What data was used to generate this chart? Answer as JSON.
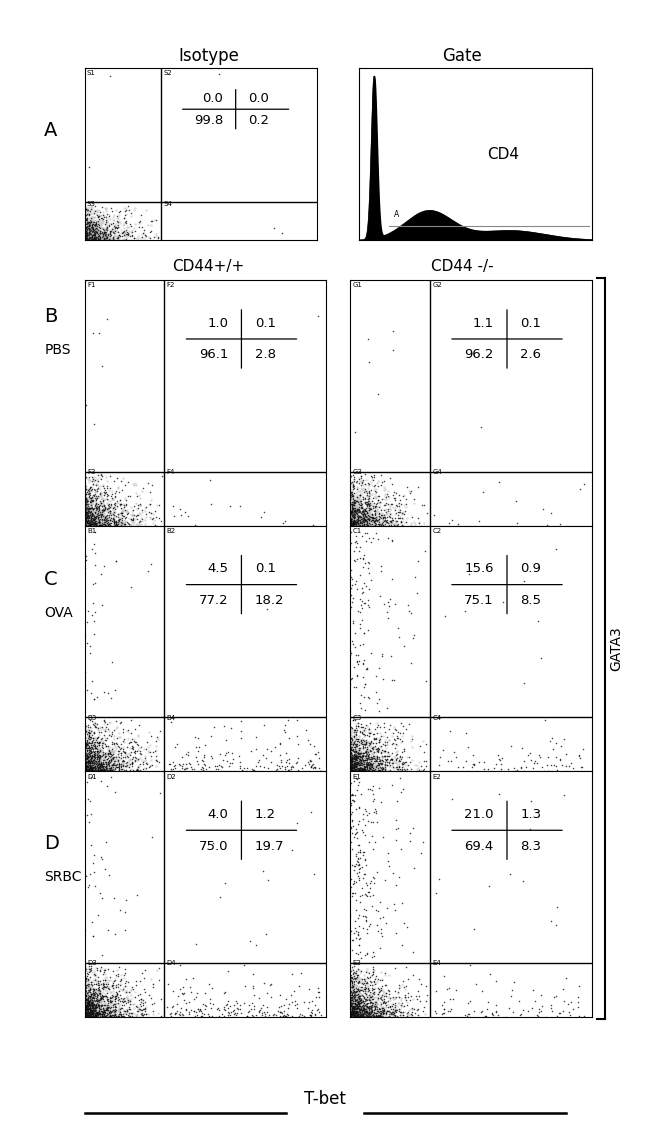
{
  "panel_A_left_label": "Isotype",
  "panel_A_right_label": "Gate",
  "col_labels": [
    "CD44+/+",
    "CD44 -/-"
  ],
  "row_single_letters": [
    "B",
    "C",
    "D"
  ],
  "row_condition_labels": [
    "PBS",
    "OVA",
    "SRBC"
  ],
  "gata3_label": "GATA3",
  "tbet_label": "T-bet",
  "cd4_label": "CD4",
  "quad_stats": {
    "A_isotype": [
      "0.0",
      "0.0",
      "99.8",
      "0.2"
    ],
    "B_left": [
      "1.0",
      "0.1",
      "96.1",
      "2.8"
    ],
    "B_right": [
      "1.1",
      "0.1",
      "96.2",
      "2.6"
    ],
    "C_left": [
      "4.5",
      "0.1",
      "77.2",
      "18.2"
    ],
    "C_right": [
      "15.6",
      "0.9",
      "75.1",
      "8.5"
    ],
    "D_left": [
      "4.0",
      "1.2",
      "75.0",
      "19.7"
    ],
    "D_right": [
      "21.0",
      "1.3",
      "69.4",
      "8.3"
    ]
  },
  "quadrant_gate_labels": {
    "A_isotype": [
      "S1",
      "S2",
      "S3",
      "S4"
    ],
    "B_left": [
      "F1",
      "F2",
      "F3",
      "F4"
    ],
    "B_right": [
      "G1",
      "G2",
      "G3",
      "G4"
    ],
    "C_left": [
      "B1",
      "B2",
      "B3",
      "B4"
    ],
    "C_right": [
      "C1",
      "C2",
      "C3",
      "C4"
    ],
    "D_left": [
      "D1",
      "D2",
      "D3",
      "D4"
    ],
    "D_right": [
      "E1",
      "E2",
      "E3",
      "E4"
    ]
  }
}
